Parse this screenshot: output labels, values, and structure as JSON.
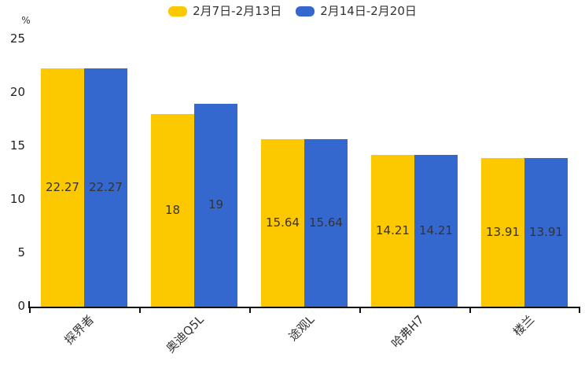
{
  "unit_label": "%",
  "legend": {
    "position": "top",
    "items": [
      {
        "label": "2月7日-2月13日",
        "color": "#FCC800"
      },
      {
        "label": "2月14日-2月20日",
        "color": "#3568CE"
      }
    ]
  },
  "chart_data": {
    "type": "bar",
    "title": "",
    "categories": [
      "探界者",
      "奥迪Q5L",
      "途观L",
      "哈弗H7",
      "楼兰"
    ],
    "series": [
      {
        "name": "2月7日-2月13日",
        "color": "#FCC800",
        "values": [
          22.27,
          18,
          15.64,
          14.21,
          13.91
        ]
      },
      {
        "name": "2月14日-2月20日",
        "color": "#3568CE",
        "values": [
          22.27,
          19,
          15.64,
          14.21,
          13.91
        ]
      }
    ],
    "ylabel": "%",
    "xlabel": "",
    "y_axis": {
      "min": 0,
      "max": 25,
      "ticks": [
        0,
        5,
        10,
        15,
        20,
        25
      ]
    },
    "grid": false,
    "data_labels": "inside-center",
    "legend_position": "top-center"
  }
}
